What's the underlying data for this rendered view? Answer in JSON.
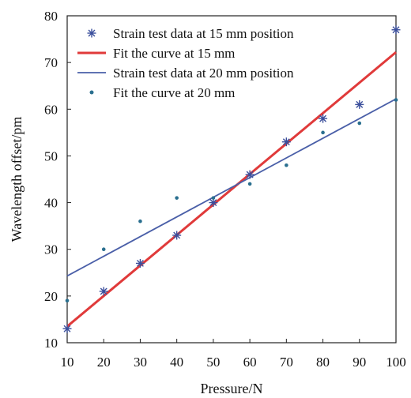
{
  "chart_data": {
    "type": "scatter",
    "xlabel": "Pressure/N",
    "ylabel": "Wavelength offset/pm",
    "xlim": [
      10,
      100
    ],
    "ylim": [
      10,
      80
    ],
    "xticks": [
      10,
      20,
      30,
      40,
      50,
      60,
      70,
      80,
      90,
      100
    ],
    "yticks": [
      10,
      20,
      30,
      40,
      50,
      60,
      70,
      80
    ],
    "grid": false,
    "legend_position": "top-left",
    "series": [
      {
        "name": "Strain test data at 15 mm position",
        "kind": "scatter",
        "marker": "asterisk",
        "color": "#3b4f9c",
        "x": [
          10,
          20,
          30,
          40,
          50,
          60,
          70,
          80,
          90,
          100
        ],
        "y": [
          13,
          21,
          27,
          33,
          40,
          46,
          53,
          58,
          61,
          77
        ]
      },
      {
        "name": "Fit the curve at 15 mm",
        "kind": "line",
        "color": "#e03a3a",
        "x": [
          10,
          100
        ],
        "y": [
          13.5,
          72.2
        ]
      },
      {
        "name": "Strain test data at 20 mm position",
        "kind": "line",
        "color": "#4a5fa8",
        "x": [
          10,
          100
        ],
        "y": [
          24.3,
          62.2
        ]
      },
      {
        "name": "Fit the curve at 20 mm",
        "kind": "scatter",
        "marker": "dot",
        "color": "#2a6f8f",
        "x": [
          10,
          20,
          30,
          40,
          50,
          60,
          70,
          80,
          90,
          100
        ],
        "y": [
          19,
          30,
          36,
          41,
          41,
          44,
          48,
          55,
          57,
          62
        ]
      }
    ]
  }
}
